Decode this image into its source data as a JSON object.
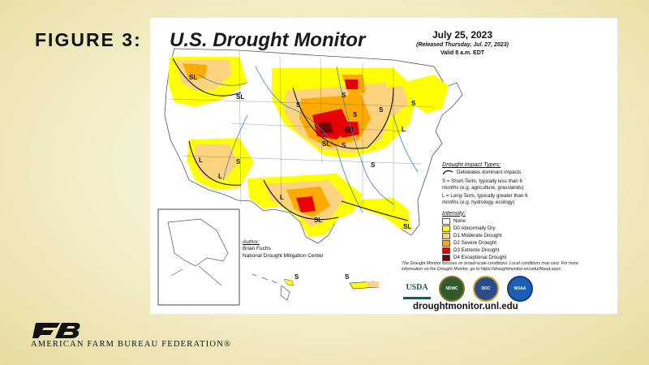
{
  "slide": {
    "figure_label": "FIGURE 3:"
  },
  "map": {
    "title": "U.S. Drought Monitor",
    "date": "July 25, 2023",
    "released": "(Released Thursday, Jul. 27, 2023)",
    "valid": "Valid 8 a.m. EDT",
    "region_labels": [
      "SL",
      "SL",
      "S",
      "L",
      "L",
      "S",
      "S",
      "S",
      "SL",
      "S",
      "S",
      "L",
      "SL",
      "SL",
      "S",
      "L",
      "S"
    ],
    "colors": {
      "none": "#ffffff",
      "d0": "#ffff00",
      "d1": "#fcd37f",
      "d2": "#ffaa00",
      "d3": "#e60000",
      "d4": "#730000",
      "rivers": "#3a7fd5",
      "borders": "#555555"
    }
  },
  "legend": {
    "impact_heading": "Drought Impact Types:",
    "impact_line": "Delineates dominant impacts",
    "short_term": "S = Short-Term, typically less than 6 months (e.g. agriculture, grasslands)",
    "long_term": "L = Long-Term, typically greater than 6 months (e.g. hydrology, ecology)",
    "intensity_heading": "Intensity:",
    "items": [
      {
        "label": "None",
        "color": "#ffffff"
      },
      {
        "label": "D0 Abnormally Dry",
        "color": "#ffff00"
      },
      {
        "label": "D1 Moderate Drought",
        "color": "#fcd37f"
      },
      {
        "label": "D2 Severe Drought",
        "color": "#ffaa00"
      },
      {
        "label": "D3 Extreme Drought",
        "color": "#e60000"
      },
      {
        "label": "D4 Exceptional Drought",
        "color": "#730000"
      }
    ]
  },
  "author": {
    "heading": "Author:",
    "name": "Brian Fuchs",
    "org": "National Drought Mitigation Center"
  },
  "note": "The Drought Monitor focuses on broad-scale conditions. Local conditions may vary. For more information on the Drought Monitor, go to https://droughtmonitor.unl.edu/About.aspx",
  "logos": {
    "usda": "USDA",
    "ndmc": "NDMC",
    "doc": "DOC",
    "noaa": "NOAA"
  },
  "site_url": "droughtmonitor.unl.edu",
  "insets": {
    "hawaii_label": "S",
    "pr_label": "S"
  },
  "footer": {
    "org_name": "AMERICAN FARM BUREAU FEDERATION®"
  }
}
